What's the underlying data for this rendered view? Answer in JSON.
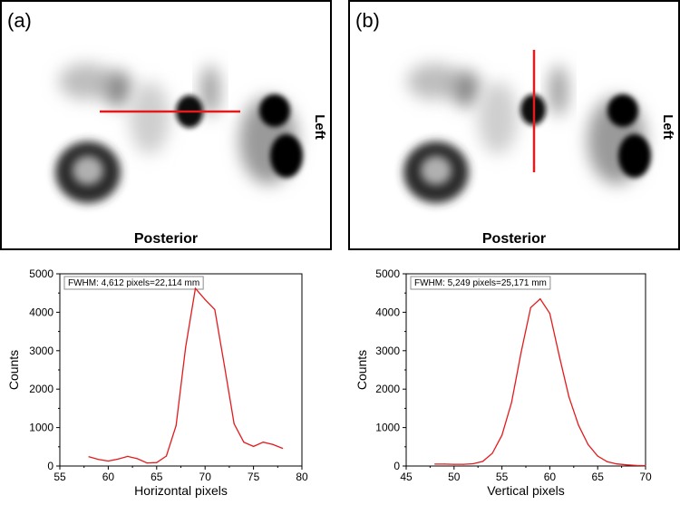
{
  "panels": [
    {
      "tag": "(a)",
      "bottom_label": "Posterior",
      "side_label": "Left"
    },
    {
      "tag": "(b)",
      "bottom_label": "Posterior",
      "side_label": "Left"
    }
  ],
  "colors": {
    "profile": "#e41a1c",
    "frame": "#000000",
    "annotation_border": "#8c8c8c"
  },
  "chart_data": [
    {
      "type": "line",
      "title": "",
      "annotation": "FWHM: 4,612 pixels=22,114 mm",
      "xlabel": "Horizontal pixels",
      "ylabel": "Counts",
      "xlim": [
        55,
        80
      ],
      "ylim": [
        0,
        5000
      ],
      "xticks": [
        55,
        60,
        65,
        70,
        75,
        80
      ],
      "yticks": [
        0,
        1000,
        2000,
        3000,
        4000,
        5000
      ],
      "series": [
        {
          "name": "Horizontal profile",
          "x": [
            58,
            59,
            60,
            61,
            62,
            63,
            64,
            65,
            66,
            67,
            68,
            69,
            70,
            71,
            72,
            73,
            74,
            75,
            76,
            77,
            78
          ],
          "y": [
            240,
            170,
            130,
            180,
            250,
            190,
            80,
            90,
            260,
            1050,
            3100,
            4620,
            4330,
            4070,
            2600,
            1100,
            620,
            510,
            620,
            560,
            460
          ]
        }
      ]
    },
    {
      "type": "line",
      "title": "",
      "annotation": "FWHM: 5,249 pixels=25,171 mm",
      "xlabel": "Vertical pixels",
      "ylabel": "Counts",
      "xlim": [
        45,
        70
      ],
      "ylim": [
        0,
        5000
      ],
      "xticks": [
        45,
        50,
        55,
        60,
        65,
        70
      ],
      "yticks": [
        0,
        1000,
        2000,
        3000,
        4000,
        5000
      ],
      "series": [
        {
          "name": "Vertical profile",
          "x": [
            48,
            49,
            50,
            51,
            52,
            53,
            54,
            55,
            56,
            57,
            58,
            59,
            60,
            61,
            62,
            63,
            64,
            65,
            66,
            67,
            68,
            69,
            70
          ],
          "y": [
            50,
            50,
            45,
            45,
            60,
            120,
            330,
            800,
            1650,
            2950,
            4120,
            4350,
            3970,
            2850,
            1800,
            1060,
            560,
            260,
            110,
            55,
            30,
            15,
            10
          ]
        }
      ]
    }
  ]
}
